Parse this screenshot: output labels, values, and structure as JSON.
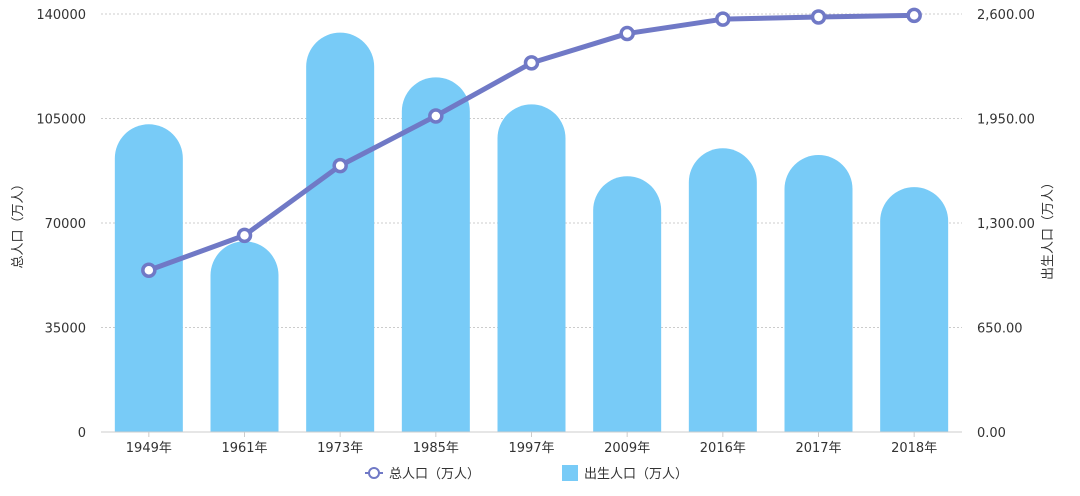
{
  "chart_data": {
    "type": "bar+line",
    "categories": [
      "1949年",
      "1961年",
      "1973年",
      "1985年",
      "1997年",
      "2009年",
      "2016年",
      "2017年",
      "2018年"
    ],
    "series": [
      {
        "name": "总人口（万人）",
        "type": "line",
        "axis": "left",
        "color": "#7079c6",
        "values": [
          54167,
          65859,
          89211,
          105851,
          123626,
          133450,
          138271,
          139008,
          139538
        ]
      },
      {
        "name": "出生人口（万人）",
        "type": "bar",
        "axis": "right",
        "color": "#78cbf7",
        "values": [
          1914,
          1186,
          2484,
          2206,
          2038,
          1591,
          1765,
          1723,
          1523
        ]
      }
    ],
    "y_left": {
      "label": "总人口（万人）",
      "min": 0,
      "max": 140000,
      "ticks": [
        "0",
        "35000",
        "70000",
        "105000",
        "140000"
      ]
    },
    "y_right": {
      "label": "出生人口（万人）",
      "min": 0,
      "max": 2600,
      "ticks": [
        "0.00",
        "650.00",
        "1,300.00",
        "1,950.00",
        "2,600.00"
      ]
    },
    "grid": true,
    "legend_position": "bottom"
  }
}
